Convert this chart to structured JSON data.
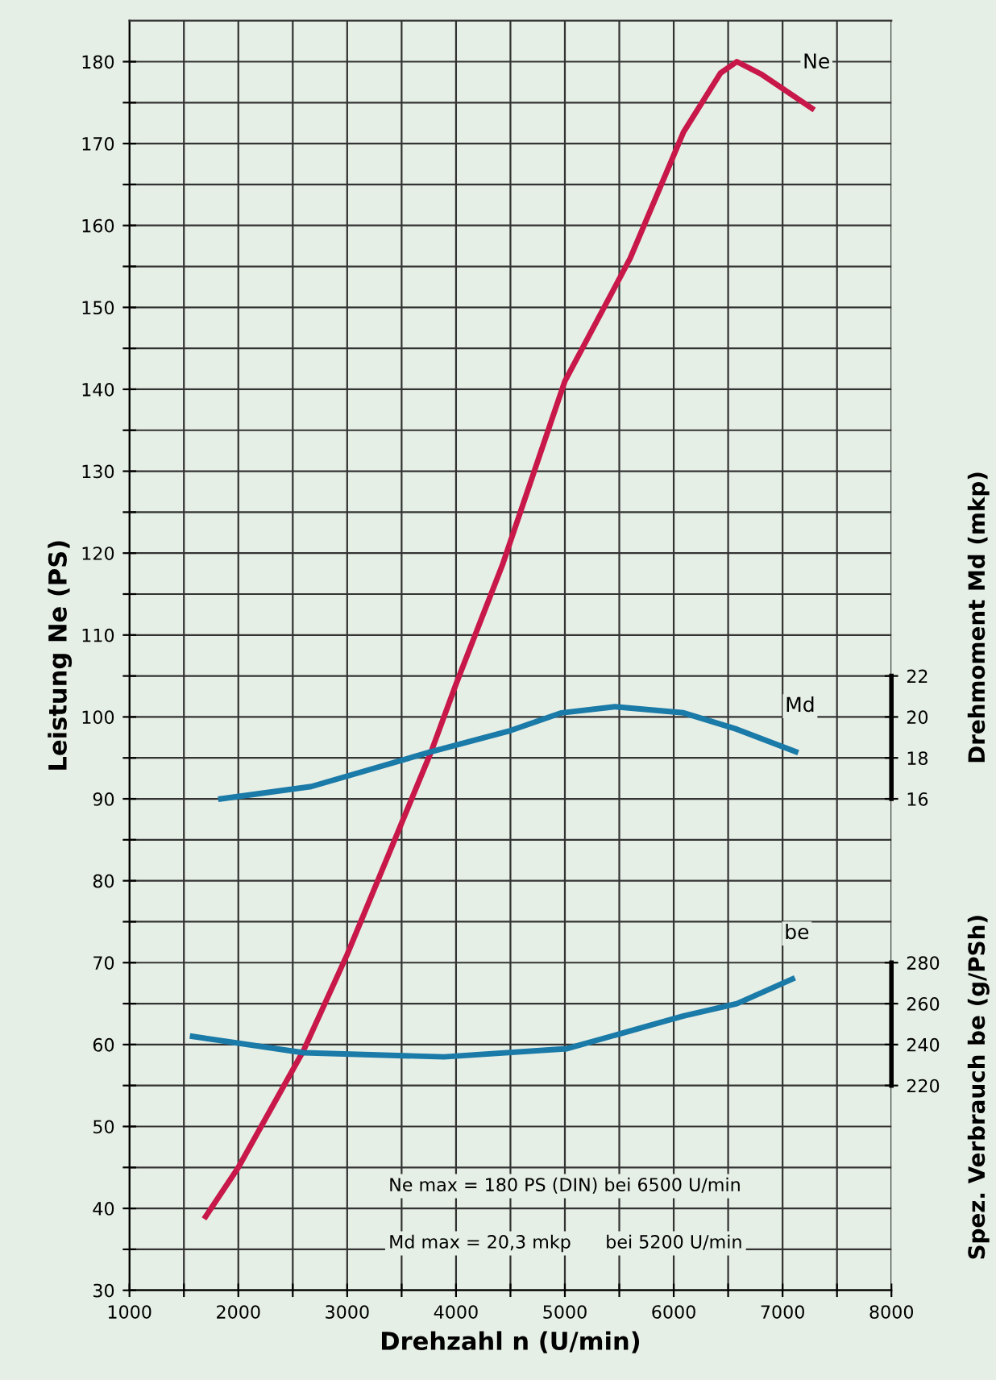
{
  "chart_data": {
    "type": "line",
    "xlabel": "Drehzahl n (U/min)",
    "ylabel": "Leistung Ne (PS)",
    "y2label": "Drehmoment Md (mkp)",
    "y3label": "Spez. Verbrauch be (g/PSh)",
    "xlim": [
      1000,
      8000
    ],
    "ylim": [
      30,
      185
    ],
    "y2lim": [
      -8,
      54
    ],
    "y3lim": [
      120,
      740
    ],
    "xticks": [
      1000,
      {
        "value": 1500,
        "label": null
      },
      2000,
      {
        "value": 2500,
        "label": null
      },
      3000,
      {
        "value": 3500,
        "label": null
      },
      4000,
      {
        "value": 4500,
        "label": null
      },
      5000,
      {
        "value": 5500,
        "label": null
      },
      6000,
      {
        "value": 6500,
        "label": null
      },
      7000,
      {
        "value": 7500,
        "label": null
      },
      8000
    ],
    "yticks": [
      30,
      {
        "value": 35,
        "label": null
      },
      40,
      {
        "value": 45,
        "label": null
      },
      50,
      {
        "value": 55,
        "label": null
      },
      60,
      {
        "value": 65,
        "label": null
      },
      70,
      {
        "value": 75,
        "label": null
      },
      80,
      {
        "value": 85,
        "label": null
      },
      90,
      {
        "value": 95,
        "label": null
      },
      100,
      {
        "value": 105,
        "label": null
      },
      110,
      {
        "value": 115,
        "label": null
      },
      120,
      {
        "value": 125,
        "label": null
      },
      130,
      {
        "value": 135,
        "label": null
      },
      140,
      {
        "value": 145,
        "label": null
      },
      150,
      {
        "value": 155,
        "label": null
      },
      160,
      {
        "value": 165,
        "label": null
      },
      170,
      {
        "value": 175,
        "label": null
      },
      180
    ],
    "y2ticks": [
      16,
      18,
      20,
      22
    ],
    "y3ticks": [
      220,
      240,
      260,
      280
    ],
    "grid": true,
    "legend": false,
    "marker": "none",
    "line_style": "solid",
    "series": [
      {
        "name": "Ne",
        "color": "#c8184a",
        "x": [
          1700,
          2000,
          2600,
          3000,
          3770,
          4000,
          4430,
          5000,
          5600,
          6090,
          6430,
          6580,
          6800,
          7270
        ],
        "values": [
          39,
          45,
          59.3,
          71,
          95.7,
          104,
          118.7,
          141,
          156,
          171.4,
          178.6,
          180,
          178.5,
          174.3
        ]
      },
      {
        "name": "Md",
        "color": "#1a7aa8",
        "axis": "y2",
        "x": [
          1840,
          2670,
          3770,
          4480,
          4970,
          5460,
          6090,
          6580,
          7120
        ],
        "values": [
          16.0,
          16.6,
          18.3,
          19.3,
          20.2,
          20.5,
          20.2,
          19.4,
          18.3
        ]
      },
      {
        "name": "be",
        "color": "#1a7aa8",
        "axis": "y3",
        "x": [
          1580,
          2600,
          3890,
          5020,
          6090,
          6580,
          7090
        ],
        "values": [
          244,
          236,
          234,
          238,
          254,
          260,
          272
        ]
      }
    ],
    "annotations": [
      "Ne max = 180 PS (DIN) bei 6500 U/min",
      "Md max = 20,3 mkp      bei 5200 U/min"
    ]
  }
}
